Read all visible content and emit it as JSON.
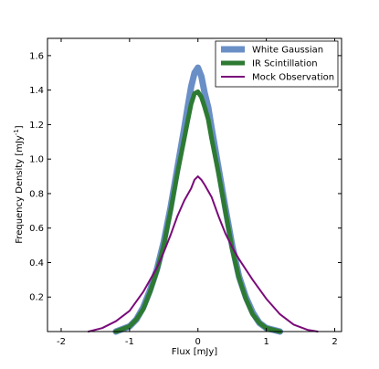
{
  "chart_data": {
    "type": "line",
    "xlabel": "Flux [mJy]",
    "ylabel": "Frequency Density [mJy",
    "ylabel_sup": "-1",
    "ylabel_close": "]",
    "xlim": [
      -2.2,
      2.1
    ],
    "ylim": [
      0,
      1.7
    ],
    "xticks": [
      -2,
      -1,
      0,
      1,
      2
    ],
    "xtick_labels": [
      "-2",
      "-1",
      "0",
      "1",
      "2"
    ],
    "yticks": [
      0.2,
      0.4,
      0.6,
      0.8,
      1.0,
      1.2,
      1.4,
      1.6
    ],
    "ytick_labels": [
      "0.2",
      "0.4",
      "0.6",
      "0.8",
      "1.0",
      "1.2",
      "1.4",
      "1.6"
    ],
    "grid": false,
    "legend_position": "top-right",
    "series": [
      {
        "name": "White Gaussian",
        "color": "#6a8fc7",
        "x": [
          -1.2,
          -1.0,
          -0.9,
          -0.8,
          -0.7,
          -0.6,
          -0.5,
          -0.4,
          -0.3,
          -0.2,
          -0.15,
          -0.1,
          -0.05,
          0.0,
          0.05,
          0.1,
          0.15,
          0.2,
          0.3,
          0.4,
          0.5,
          0.6,
          0.7,
          0.8,
          0.9,
          1.0,
          1.2
        ],
        "y": [
          0.0,
          0.03,
          0.07,
          0.14,
          0.24,
          0.36,
          0.52,
          0.72,
          0.95,
          1.18,
          1.3,
          1.42,
          1.5,
          1.53,
          1.48,
          1.38,
          1.3,
          1.18,
          0.95,
          0.72,
          0.5,
          0.32,
          0.2,
          0.11,
          0.05,
          0.02,
          0.0
        ]
      },
      {
        "name": "IR Scintillation",
        "color": "#2d7a32",
        "x": [
          -1.2,
          -1.0,
          -0.9,
          -0.8,
          -0.7,
          -0.6,
          -0.5,
          -0.4,
          -0.3,
          -0.2,
          -0.15,
          -0.1,
          -0.05,
          0.0,
          0.05,
          0.1,
          0.15,
          0.2,
          0.3,
          0.4,
          0.5,
          0.6,
          0.7,
          0.8,
          0.9,
          1.0,
          1.2
        ],
        "y": [
          0.0,
          0.03,
          0.07,
          0.13,
          0.23,
          0.35,
          0.5,
          0.7,
          0.92,
          1.12,
          1.22,
          1.32,
          1.38,
          1.39,
          1.36,
          1.3,
          1.23,
          1.12,
          0.92,
          0.7,
          0.48,
          0.31,
          0.19,
          0.1,
          0.05,
          0.02,
          0.0
        ]
      },
      {
        "name": "Mock Observation",
        "color": "#7a0a7a",
        "x": [
          -1.6,
          -1.4,
          -1.2,
          -1.0,
          -0.8,
          -0.6,
          -0.5,
          -0.4,
          -0.3,
          -0.2,
          -0.1,
          -0.05,
          0.0,
          0.05,
          0.1,
          0.2,
          0.3,
          0.4,
          0.5,
          0.6,
          0.8,
          1.0,
          1.2,
          1.4,
          1.6,
          1.75
        ],
        "y": [
          0.0,
          0.02,
          0.06,
          0.12,
          0.23,
          0.37,
          0.46,
          0.56,
          0.67,
          0.76,
          0.83,
          0.88,
          0.9,
          0.88,
          0.85,
          0.78,
          0.67,
          0.57,
          0.49,
          0.42,
          0.3,
          0.19,
          0.1,
          0.04,
          0.01,
          0.0
        ]
      }
    ]
  }
}
